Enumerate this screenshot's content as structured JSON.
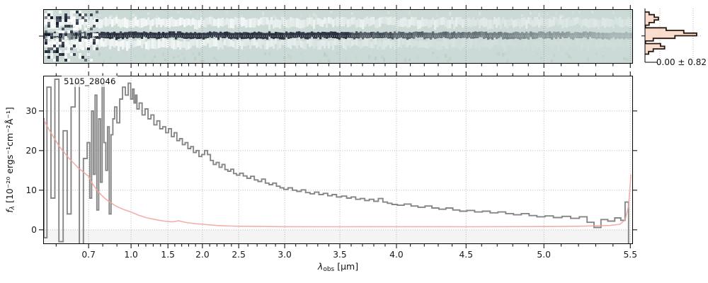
{
  "figure": {
    "background": "#ffffff",
    "object_label": "5105_28046",
    "hist_annotation": "0.00 ± 0.82",
    "xlabel": {
      "symbol": "λ",
      "sub": "obs",
      "unit": " [μm]"
    },
    "ylabel": {
      "symbol": "f",
      "sub": "λ",
      "unit": " [10⁻²⁰ ergs⁻¹cm⁻²Å⁻¹]"
    }
  },
  "chart_data": [
    {
      "id": "spectrum_2d",
      "type": "heatmap",
      "description": "2D spectrum cutout: dark spectral trace along the center row, bright white background-subtraction bands above and below, chaotic noisy pixels at the blue end, pale teal background; dotted trace-center line and dashed wavelength gridlines; no axis labels",
      "background_color": "#cbdad6",
      "trace_color": "#232938",
      "noise_seed": 20,
      "trace_center_local_y": 38,
      "x_axis_shared_with": "spectrum_1d"
    },
    {
      "id": "pixel_histogram",
      "type": "histogram",
      "orientation": "horizontal",
      "annotation": "0.00 ± 0.82",
      "mean": 0.0,
      "sigma": 0.82,
      "bins_normalized": [
        0.08,
        0.18,
        0.26,
        0.18,
        0.08,
        0.01,
        0.41,
        0.75,
        1.0,
        0.58,
        0.16,
        0.01,
        0.3,
        0.38,
        0.16,
        0.07
      ],
      "fill_color": "#f8d7c6",
      "edge_color": "#2a190e",
      "gridline_fracs_x": [
        0.26,
        0.84
      ],
      "center_line_frac_y": 0.51
    },
    {
      "id": "spectrum_1d",
      "type": "line",
      "title": "5105_28046",
      "xlabel": "λ_obs [μm]",
      "ylabel": "f_λ [10⁻²⁰ ergs⁻¹cm⁻²Å⁻¹]",
      "grid": true,
      "ylim": [
        -3.6,
        38.9
      ],
      "xlim_wave": [
        0.56,
        5.52
      ],
      "y_ticks": [
        {
          "label": "0",
          "value": 0
        },
        {
          "label": "10",
          "value": 10
        },
        {
          "label": "20",
          "value": 20
        },
        {
          "label": "30",
          "value": 30
        }
      ],
      "x_ticks": [
        {
          "label": "0.7",
          "wave": 0.7
        },
        {
          "label": "1.0",
          "wave": 1.0
        },
        {
          "label": "1.5",
          "wave": 1.5
        },
        {
          "label": "2.0",
          "wave": 2.0
        },
        {
          "label": "2.5",
          "wave": 2.5
        },
        {
          "label": "3.0",
          "wave": 3.0
        },
        {
          "label": "3.5",
          "wave": 3.5
        },
        {
          "label": "4.0",
          "wave": 4.0
        },
        {
          "label": "4.5",
          "wave": 4.5
        },
        {
          "label": "5.0",
          "wave": 5.0
        },
        {
          "label": "5.5",
          "wave": 5.5
        }
      ],
      "x_scale_anchors": [
        [
          0.56,
          0.0
        ],
        [
          0.7,
          0.077
        ],
        [
          1.0,
          0.149
        ],
        [
          1.5,
          0.2115
        ],
        [
          2.0,
          0.27
        ],
        [
          2.5,
          0.3315
        ],
        [
          3.0,
          0.4095
        ],
        [
          3.5,
          0.503
        ],
        [
          4.0,
          0.599
        ],
        [
          4.5,
          0.717
        ],
        [
          5.0,
          0.849
        ],
        [
          5.5,
          0.9955
        ],
        [
          5.52,
          1.0
        ]
      ],
      "minor_tick_step": 0.1,
      "series": [
        {
          "name": "flux",
          "color": "#868686",
          "style": "steps",
          "line_width": 1.9,
          "points": [
            [
              0.552,
              28
            ],
            [
              0.565,
              -2
            ],
            [
              0.578,
              36
            ],
            [
              0.59,
              8
            ],
            [
              0.602,
              38
            ],
            [
              0.615,
              -3
            ],
            [
              0.628,
              25
            ],
            [
              0.64,
              4
            ],
            [
              0.652,
              31
            ],
            [
              0.665,
              37
            ],
            [
              0.678,
              -4
            ],
            [
              0.69,
              18
            ],
            [
              0.702,
              22
            ],
            [
              0.715,
              8
            ],
            [
              0.728,
              30
            ],
            [
              0.74,
              14
            ],
            [
              0.752,
              34
            ],
            [
              0.765,
              5
            ],
            [
              0.778,
              28
            ],
            [
              0.79,
              12
            ],
            [
              0.802,
              37
            ],
            [
              0.815,
              22
            ],
            [
              0.828,
              15
            ],
            [
              0.84,
              26
            ],
            [
              0.852,
              4
            ],
            [
              0.865,
              24
            ],
            [
              0.878,
              28
            ],
            [
              0.89,
              31
            ],
            [
              0.91,
              27
            ],
            [
              0.93,
              33
            ],
            [
              0.95,
              36
            ],
            [
              0.97,
              34
            ],
            [
              0.99,
              37
            ],
            [
              1.01,
              33
            ],
            [
              1.03,
              35.5
            ],
            [
              1.05,
              32
            ],
            [
              1.07,
              34
            ],
            [
              1.09,
              30.5
            ],
            [
              1.13,
              32
            ],
            [
              1.17,
              29
            ],
            [
              1.21,
              30.5
            ],
            [
              1.25,
              28
            ],
            [
              1.29,
              29
            ],
            [
              1.33,
              26.5
            ],
            [
              1.37,
              27.5
            ],
            [
              1.41,
              25.5
            ],
            [
              1.45,
              26
            ],
            [
              1.49,
              24.5
            ],
            [
              1.53,
              25.5
            ],
            [
              1.57,
              23.5
            ],
            [
              1.61,
              24.5
            ],
            [
              1.65,
              22.5
            ],
            [
              1.69,
              23
            ],
            [
              1.73,
              21.5
            ],
            [
              1.77,
              22
            ],
            [
              1.81,
              20.5
            ],
            [
              1.85,
              21
            ],
            [
              1.89,
              19.5
            ],
            [
              1.93,
              20
            ],
            [
              1.97,
              18.5
            ],
            [
              2.01,
              19
            ],
            [
              2.05,
              20
            ],
            [
              2.09,
              19
            ],
            [
              2.13,
              17.5
            ],
            [
              2.17,
              16.5
            ],
            [
              2.21,
              17
            ],
            [
              2.25,
              15.8
            ],
            [
              2.29,
              16.5
            ],
            [
              2.33,
              15.2
            ],
            [
              2.37,
              14.8
            ],
            [
              2.41,
              15.3
            ],
            [
              2.45,
              14.2
            ],
            [
              2.49,
              13.8
            ],
            [
              2.53,
              14.3
            ],
            [
              2.57,
              13.6
            ],
            [
              2.61,
              13
            ],
            [
              2.65,
              13.5
            ],
            [
              2.69,
              12.6
            ],
            [
              2.73,
              12.2
            ],
            [
              2.77,
              12.8
            ],
            [
              2.81,
              11.8
            ],
            [
              2.85,
              11.4
            ],
            [
              2.89,
              11.8
            ],
            [
              2.93,
              11
            ],
            [
              2.97,
              10.6
            ],
            [
              3.01,
              10.2
            ],
            [
              3.05,
              10.6
            ],
            [
              3.09,
              10
            ],
            [
              3.13,
              9.7
            ],
            [
              3.17,
              10.1
            ],
            [
              3.21,
              9.4
            ],
            [
              3.25,
              9.1
            ],
            [
              3.29,
              9.5
            ],
            [
              3.33,
              8.9
            ],
            [
              3.37,
              9.2
            ],
            [
              3.41,
              8.6
            ],
            [
              3.45,
              8.9
            ],
            [
              3.49,
              8.3
            ],
            [
              3.54,
              8.5
            ],
            [
              3.58,
              8
            ],
            [
              3.62,
              8.3
            ],
            [
              3.66,
              7.7
            ],
            [
              3.7,
              7.9
            ],
            [
              3.74,
              7.4
            ],
            [
              3.78,
              7.7
            ],
            [
              3.82,
              7.2
            ],
            [
              3.86,
              7.9
            ],
            [
              3.9,
              7
            ],
            [
              3.94,
              6.7
            ],
            [
              3.98,
              6.4
            ],
            [
              4.03,
              6.2
            ],
            [
              4.08,
              6.5
            ],
            [
              4.13,
              6
            ],
            [
              4.18,
              5.7
            ],
            [
              4.23,
              6
            ],
            [
              4.28,
              5.5
            ],
            [
              4.33,
              5.2
            ],
            [
              4.38,
              5.5
            ],
            [
              4.43,
              5
            ],
            [
              4.48,
              4.7
            ],
            [
              4.53,
              4.9
            ],
            [
              4.58,
              4.5
            ],
            [
              4.63,
              4.7
            ],
            [
              4.68,
              4.3
            ],
            [
              4.73,
              4.5
            ],
            [
              4.78,
              4.1
            ],
            [
              4.83,
              3.8
            ],
            [
              4.88,
              4.1
            ],
            [
              4.93,
              3.6
            ],
            [
              4.98,
              3.3
            ],
            [
              5.03,
              3.5
            ],
            [
              5.08,
              3.1
            ],
            [
              5.13,
              3.4
            ],
            [
              5.18,
              2.9
            ],
            [
              5.23,
              3.3
            ],
            [
              5.27,
              1.9
            ],
            [
              5.31,
              0.6
            ],
            [
              5.35,
              2.6
            ],
            [
              5.39,
              2.2
            ],
            [
              5.43,
              3
            ],
            [
              5.46,
              2.4
            ],
            [
              5.48,
              7
            ],
            [
              5.5,
              -4
            ]
          ]
        },
        {
          "name": "error",
          "color": "#f2a19b",
          "style": "line",
          "line_width": 1.6,
          "points": [
            [
              0.552,
              28
            ],
            [
              0.58,
              25
            ],
            [
              0.61,
              21
            ],
            [
              0.64,
              18
            ],
            [
              0.67,
              15.5
            ],
            [
              0.7,
              13.5
            ],
            [
              0.73,
              11.5
            ],
            [
              0.76,
              10
            ],
            [
              0.79,
              8.8
            ],
            [
              0.82,
              7.8
            ],
            [
              0.85,
              7
            ],
            [
              0.88,
              6.3
            ],
            [
              0.91,
              5.7
            ],
            [
              0.95,
              5.1
            ],
            [
              1.0,
              4.5
            ],
            [
              1.05,
              4.1
            ],
            [
              1.1,
              3.7
            ],
            [
              1.15,
              3.4
            ],
            [
              1.2,
              3.1
            ],
            [
              1.25,
              2.9
            ],
            [
              1.3,
              2.7
            ],
            [
              1.35,
              2.5
            ],
            [
              1.4,
              2.35
            ],
            [
              1.45,
              2.2
            ],
            [
              1.5,
              2.1
            ],
            [
              1.55,
              2
            ],
            [
              1.6,
              2.1
            ],
            [
              1.65,
              2.3
            ],
            [
              1.7,
              2.1
            ],
            [
              1.75,
              1.9
            ],
            [
              1.8,
              1.75
            ],
            [
              1.9,
              1.55
            ],
            [
              2.0,
              1.4
            ],
            [
              2.1,
              1.25
            ],
            [
              2.2,
              1.1
            ],
            [
              2.3,
              1
            ],
            [
              2.4,
              0.95
            ],
            [
              2.5,
              0.9
            ],
            [
              2.75,
              0.85
            ],
            [
              3.0,
              0.8
            ],
            [
              3.5,
              0.78
            ],
            [
              4.0,
              0.8
            ],
            [
              4.5,
              0.78
            ],
            [
              5.0,
              0.82
            ],
            [
              5.1,
              0.85
            ],
            [
              5.2,
              0.9
            ],
            [
              5.3,
              1
            ],
            [
              5.38,
              1.1
            ],
            [
              5.44,
              1.4
            ],
            [
              5.47,
              2.5
            ],
            [
              5.49,
              6
            ],
            [
              5.505,
              14
            ]
          ]
        }
      ]
    }
  ]
}
